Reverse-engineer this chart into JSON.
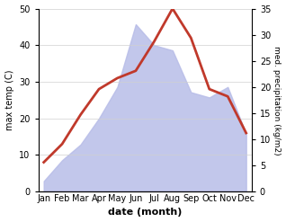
{
  "months": [
    "Jan",
    "Feb",
    "Mar",
    "Apr",
    "May",
    "Jun",
    "Jul",
    "Aug",
    "Sep",
    "Oct",
    "Nov",
    "Dec"
  ],
  "max_temp": [
    8,
    13,
    21,
    28,
    31,
    33,
    41,
    50,
    42,
    28,
    26,
    16
  ],
  "precipitation": [
    2,
    6,
    9,
    14,
    20,
    32,
    28,
    27,
    19,
    18,
    20,
    11
  ],
  "temp_color": "#c0392b",
  "precip_fill_color": "#b8bde8",
  "temp_ylim": [
    0,
    50
  ],
  "precip_ylim": [
    0,
    35
  ],
  "temp_yticks": [
    0,
    10,
    20,
    30,
    40,
    50
  ],
  "precip_yticks": [
    0,
    5,
    10,
    15,
    20,
    25,
    30,
    35
  ],
  "xlabel": "date (month)",
  "ylabel_left": "max temp (C)",
  "ylabel_right": "med. precipitation (kg/m2)",
  "bg_color": "#ffffff",
  "line_width": 2.0,
  "figsize": [
    3.18,
    2.47
  ],
  "dpi": 100
}
